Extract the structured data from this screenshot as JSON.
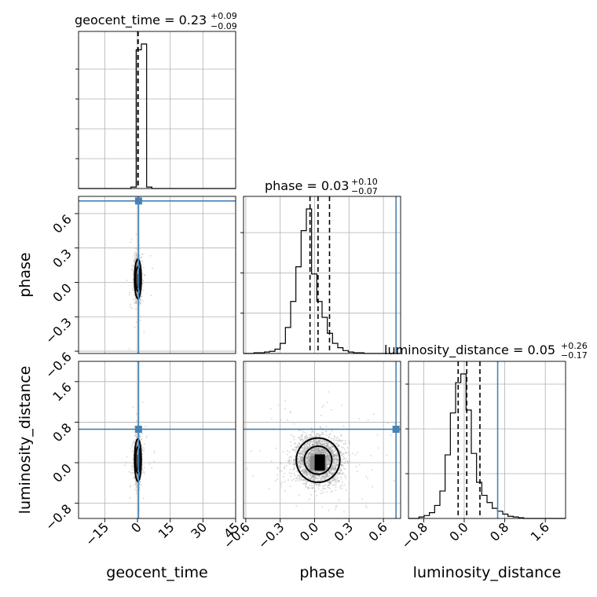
{
  "colors": {
    "truth": "#4682b4",
    "hist": "#000000",
    "grid": "#b0b0b0",
    "scatter": "#9a9a9a"
  },
  "chart_data": {
    "type": "corner",
    "parameters": [
      "geocent_time",
      "phase",
      "luminosity_distance"
    ],
    "axis_labels": {
      "geocent_time": "geocent_time",
      "phase": "phase",
      "luminosity_distance": "luminosity_distance"
    },
    "titles": {
      "geocent_time": {
        "name": "geocent_time",
        "median": "0.23",
        "plus": "+0.09",
        "minus": "−0.09"
      },
      "phase": {
        "name": "phase",
        "median": "0.03",
        "plus": "+0.10",
        "minus": "−0.07"
      },
      "luminosity_distance": {
        "name": "luminosity_distance",
        "median": "0.05",
        "plus": "+0.26",
        "minus": "−0.17"
      }
    },
    "ranges": {
      "geocent_time": [
        -27,
        45
      ],
      "phase": [
        -0.62,
        0.75
      ],
      "luminosity_distance": [
        -1.1,
        2.0
      ]
    },
    "ticks": {
      "geocent_time": [
        -15,
        0,
        15,
        30,
        45
      ],
      "phase": [
        -0.6,
        -0.3,
        0.0,
        0.3,
        0.6
      ],
      "luminosity_distance": [
        -0.8,
        0.0,
        0.8,
        1.6
      ]
    },
    "tick_labels": {
      "geocent_time": [
        "−15",
        "0",
        "15",
        "30",
        "45"
      ],
      "phase": [
        "−0.6",
        "−0.3",
        "0.0",
        "0.3",
        "0.6"
      ],
      "luminosity_distance": [
        "−0.8",
        "0.0",
        "0.8",
        "1.6"
      ]
    },
    "truths": {
      "geocent_time": 0.5,
      "phase": 0.71,
      "luminosity_distance": 0.66
    },
    "quantiles": {
      "geocent_time": [
        0.14,
        0.23,
        0.32
      ],
      "phase": [
        -0.04,
        0.03,
        0.13
      ],
      "luminosity_distance": [
        -0.12,
        0.05,
        0.31
      ]
    },
    "histograms": {
      "geocent_time": {
        "edges": [
          -27,
          -24.6,
          -22.2,
          -19.8,
          -17.4,
          -15,
          -12.6,
          -10.2,
          -7.8,
          -5.4,
          -3,
          -0.6,
          1.8,
          4.2,
          6.6,
          9,
          11.4,
          13.8,
          16.2,
          18.6,
          21,
          23.4,
          25.8,
          28.2,
          30.6,
          33,
          35.4,
          37.8,
          40.2,
          42.6,
          45
        ],
        "counts": [
          0,
          0,
          0,
          0,
          0,
          0,
          0,
          0,
          0,
          0,
          1,
          96,
          100,
          1,
          0,
          0,
          0,
          0,
          0,
          0,
          0,
          0,
          0,
          0,
          0,
          0,
          0,
          0,
          0,
          0
        ]
      },
      "phase": {
        "edges": [
          -0.62,
          -0.5743,
          -0.5287,
          -0.483,
          -0.4373,
          -0.3917,
          -0.346,
          -0.3003,
          -0.2547,
          -0.209,
          -0.1633,
          -0.1177,
          -0.072,
          -0.0263,
          0.0193,
          0.065,
          0.1107,
          0.1563,
          0.202,
          0.2477,
          0.2933,
          0.339,
          0.3847,
          0.4303,
          0.476,
          0.5217,
          0.5673,
          0.613,
          0.6587,
          0.7043,
          0.75
        ],
        "counts": [
          0,
          0,
          0.5,
          0.5,
          1,
          1.5,
          3,
          7,
          18,
          36,
          60,
          85,
          100,
          55,
          36,
          25,
          14,
          7,
          4,
          2,
          1,
          0.5,
          0.5,
          0,
          0,
          0,
          0,
          0,
          0,
          0
        ]
      },
      "luminosity_distance": {
        "edges": [
          -1.1,
          -0.9967,
          -0.8933,
          -0.79,
          -0.6867,
          -0.5833,
          -0.48,
          -0.3767,
          -0.2733,
          -0.17,
          -0.0667,
          0.0367,
          0.14,
          0.2433,
          0.3467,
          0.45,
          0.5533,
          0.6567,
          0.76,
          0.8633,
          0.9667,
          1.07,
          1.1733,
          1.2767,
          1.38,
          1.4833,
          1.5867,
          1.69,
          1.7933,
          1.8967,
          2.0
        ],
        "counts": [
          0,
          0,
          1,
          2,
          4,
          9,
          19,
          44,
          73,
          94,
          100,
          75,
          45,
          25,
          16,
          11,
          7,
          5,
          3,
          1.5,
          1,
          0.5,
          0,
          0,
          0,
          0,
          0,
          0,
          0,
          0
        ]
      }
    },
    "scatter": {
      "geocent_time-phase": {
        "center": [
          0.2,
          0.03
        ],
        "spread": [
          0.8,
          0.09
        ]
      },
      "geocent_time-luminosity_distance": {
        "center": [
          0.2,
          0.05
        ],
        "spread": [
          0.8,
          0.22
        ]
      },
      "phase-luminosity_distance": {
        "center": [
          0.03,
          0.05
        ],
        "spread": [
          0.1,
          0.23
        ]
      }
    },
    "grid": true,
    "legend": "none"
  }
}
